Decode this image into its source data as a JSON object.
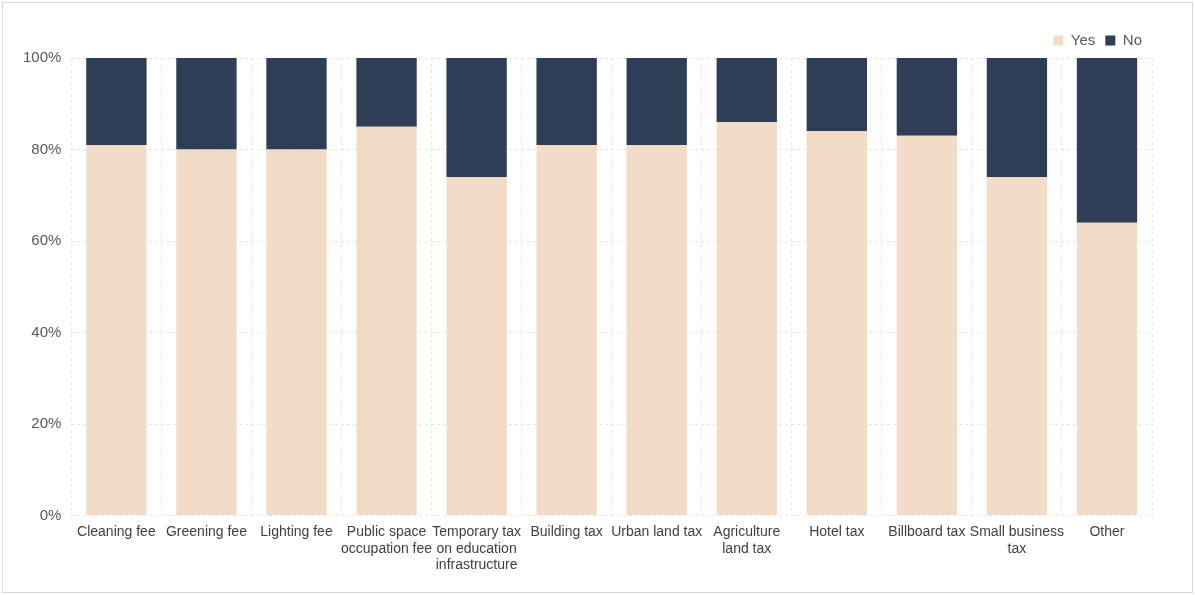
{
  "chart_data": {
    "type": "bar",
    "stacked": true,
    "categories": [
      "Cleaning fee",
      "Greening fee",
      "Lighting fee",
      "Public space occupation fee",
      "Temporary tax on education infrastructure",
      "Building tax",
      "Urban land tax",
      "Agriculture land tax",
      "Hotel tax",
      "Billboard tax",
      "Small business tax",
      "Other"
    ],
    "series": [
      {
        "name": "Yes",
        "color": "#f2dcc8",
        "values": [
          81,
          80,
          80,
          85,
          74,
          81,
          81,
          86,
          84,
          83,
          74,
          64
        ]
      },
      {
        "name": "No",
        "color": "#2d3e56",
        "values": [
          19,
          20,
          20,
          15,
          26,
          19,
          19,
          14,
          16,
          17,
          26,
          36
        ]
      }
    ],
    "ylim": [
      0,
      100
    ],
    "yticks": [
      {
        "value": 0,
        "label": "0%"
      },
      {
        "value": 20,
        "label": "20%"
      },
      {
        "value": 40,
        "label": "40%"
      },
      {
        "value": 60,
        "label": "60%"
      },
      {
        "value": 80,
        "label": "80%"
      },
      {
        "value": 100,
        "label": "100%"
      }
    ],
    "grid": true,
    "legend": "top right"
  }
}
